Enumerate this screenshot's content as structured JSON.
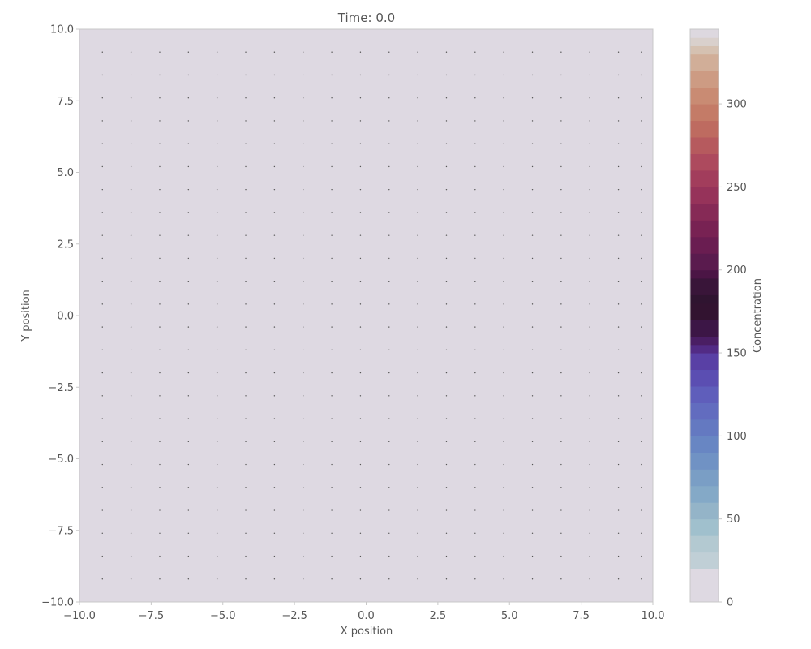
{
  "chart_data": {
    "type": "heatmap",
    "title": "Time: 0.0",
    "xlabel": "X position",
    "ylabel": "Y position",
    "xlim": [
      -10.0,
      10.0
    ],
    "ylim": [
      -10.0,
      10.0
    ],
    "x_tick_labels": [
      "−10.0",
      "−7.5",
      "−5.0",
      "−2.5",
      "0.0",
      "2.5",
      "5.0",
      "7.5",
      "10.0"
    ],
    "y_tick_labels": [
      "10.0",
      "7.5",
      "5.0",
      "2.5",
      "0.0",
      "−2.5",
      "−5.0",
      "−7.5",
      "−10.0"
    ],
    "x_ticks": [
      -10.0,
      -7.5,
      -5.0,
      -2.5,
      0.0,
      2.5,
      5.0,
      7.5,
      10.0
    ],
    "y_ticks": [
      10.0,
      7.5,
      5.0,
      2.5,
      0.0,
      -2.5,
      -5.0,
      -7.5,
      -10.0
    ],
    "field_value": 0,
    "grid_points": {
      "x": [
        -9.2,
        -8.2,
        -7.2,
        -6.2,
        -5.2,
        -4.2,
        -3.2,
        -2.2,
        -1.2,
        -0.2,
        0.8,
        1.8,
        2.8,
        3.8,
        4.8,
        5.8,
        6.8,
        7.8,
        8.8,
        9.6
      ],
      "y": [
        9.2,
        8.4,
        7.6,
        6.8,
        6.0,
        5.2,
        4.4,
        3.6,
        2.8,
        2.0,
        1.2,
        0.4,
        -0.4,
        -1.2,
        -2.0,
        -2.8,
        -3.6,
        -4.4,
        -5.2,
        -6.0,
        -6.8,
        -7.6,
        -8.4,
        -9.2
      ]
    },
    "colorbar": {
      "label": "Concentration",
      "range": [
        0,
        340
      ],
      "tick_values": [
        0,
        50,
        100,
        150,
        200,
        250,
        300
      ],
      "tick_labels": [
        "0",
        "50",
        "100",
        "150",
        "200",
        "250",
        "300"
      ],
      "levels": [
        {
          "from": 0,
          "color": "#ded9e2"
        },
        {
          "from": 20,
          "color": "#c0cfd6"
        },
        {
          "from": 30,
          "color": "#b3c9d1"
        },
        {
          "from": 40,
          "color": "#a0c0cd"
        },
        {
          "from": 50,
          "color": "#94b4c8"
        },
        {
          "from": 60,
          "color": "#84a9c7"
        },
        {
          "from": 70,
          "color": "#7a9ec5"
        },
        {
          "from": 80,
          "color": "#7092c4"
        },
        {
          "from": 90,
          "color": "#6886c3"
        },
        {
          "from": 100,
          "color": "#6479c1"
        },
        {
          "from": 110,
          "color": "#626cbf"
        },
        {
          "from": 120,
          "color": "#5f5ebb"
        },
        {
          "from": 130,
          "color": "#5b4eb2"
        },
        {
          "from": 140,
          "color": "#5940a5"
        },
        {
          "from": 150,
          "color": "#522b85"
        },
        {
          "from": 155,
          "color": "#4a1e64"
        },
        {
          "from": 160,
          "color": "#3c1646"
        },
        {
          "from": 170,
          "color": "#321330"
        },
        {
          "from": 180,
          "color": "#2f1430"
        },
        {
          "from": 185,
          "color": "#391539"
        },
        {
          "from": 195,
          "color": "#4b1545"
        },
        {
          "from": 200,
          "color": "#5a1b4e"
        },
        {
          "from": 210,
          "color": "#6a1d51"
        },
        {
          "from": 220,
          "color": "#782253"
        },
        {
          "from": 230,
          "color": "#862a56"
        },
        {
          "from": 240,
          "color": "#96335a"
        },
        {
          "from": 250,
          "color": "#a23d5c"
        },
        {
          "from": 260,
          "color": "#ad4a5e"
        },
        {
          "from": 270,
          "color": "#b65a5e"
        },
        {
          "from": 280,
          "color": "#be6b60"
        },
        {
          "from": 290,
          "color": "#c47b67"
        },
        {
          "from": 300,
          "color": "#c98b73"
        },
        {
          "from": 310,
          "color": "#cd9b83"
        },
        {
          "from": 320,
          "color": "#d1ae98"
        },
        {
          "from": 330,
          "color": "#d5c1b1"
        },
        {
          "from": 335,
          "color": "#d9d0cc"
        },
        {
          "from": 340,
          "color": "#ddd8df"
        }
      ],
      "top": 345
    },
    "colors": {
      "field": "#ded9e2",
      "grid_dot": "#555555",
      "axis": "#c8c8c8",
      "text": "#555555"
    },
    "grid": false
  }
}
